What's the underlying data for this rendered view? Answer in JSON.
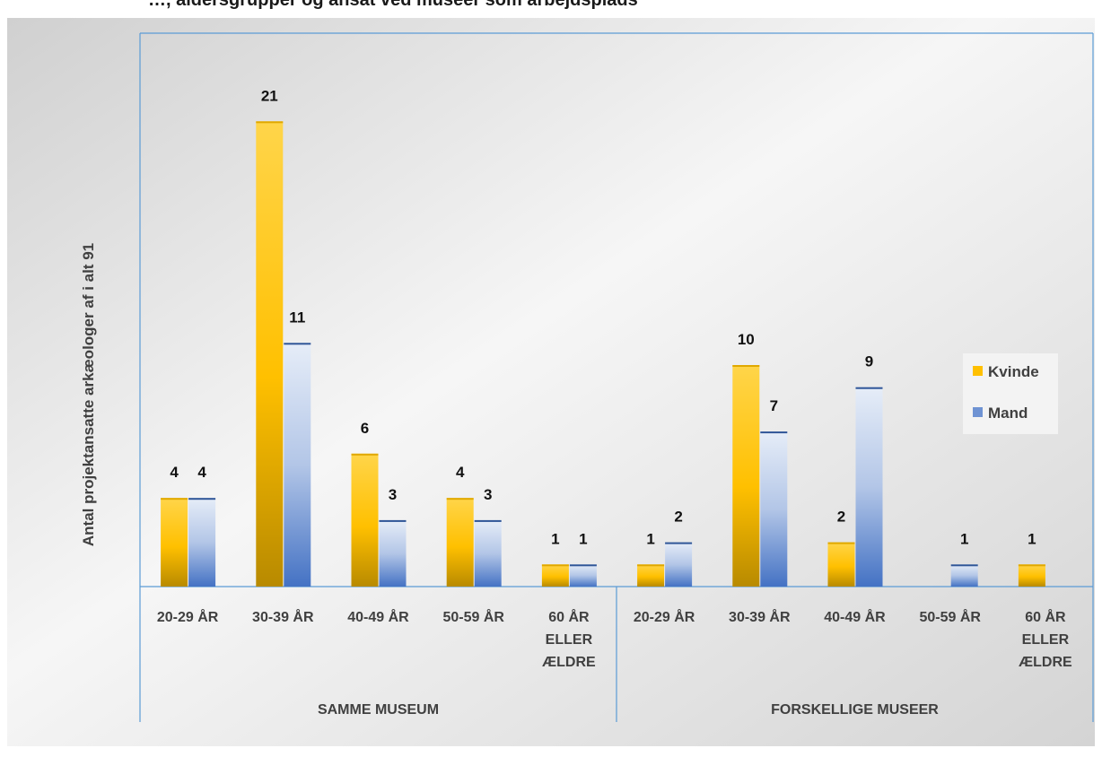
{
  "chart_data": {
    "type": "bar",
    "title": "…, aldersgrupper og ansat ved museer som arbejdsplads",
    "ylabel": "Antal projektansatte arkæologer af i alt 91",
    "xlabel": "",
    "groups": [
      {
        "label": "SAMME MUSEUM",
        "categories": [
          "20-29 ÅR",
          "30-39 ÅR",
          "40-49 ÅR",
          "50-59 ÅR",
          "60 ÅR ELLER ÆLDRE"
        ]
      },
      {
        "label": "FORSKELLIGE MUSEER",
        "categories": [
          "20-29 ÅR",
          "30-39 ÅR",
          "40-49 ÅR",
          "50-59 ÅR",
          "60 ÅR ELLER ÆLDRE"
        ]
      }
    ],
    "series": [
      {
        "name": "Kvinde",
        "color": "#FFC000",
        "values": [
          4,
          21,
          6,
          4,
          1,
          1,
          10,
          2,
          null,
          1
        ]
      },
      {
        "name": "Mand",
        "color": "#4472C4",
        "values": [
          4,
          11,
          3,
          3,
          1,
          2,
          7,
          9,
          1,
          null
        ]
      }
    ],
    "ylim": [
      0,
      21
    ],
    "grid": false,
    "legend_position": "right"
  }
}
